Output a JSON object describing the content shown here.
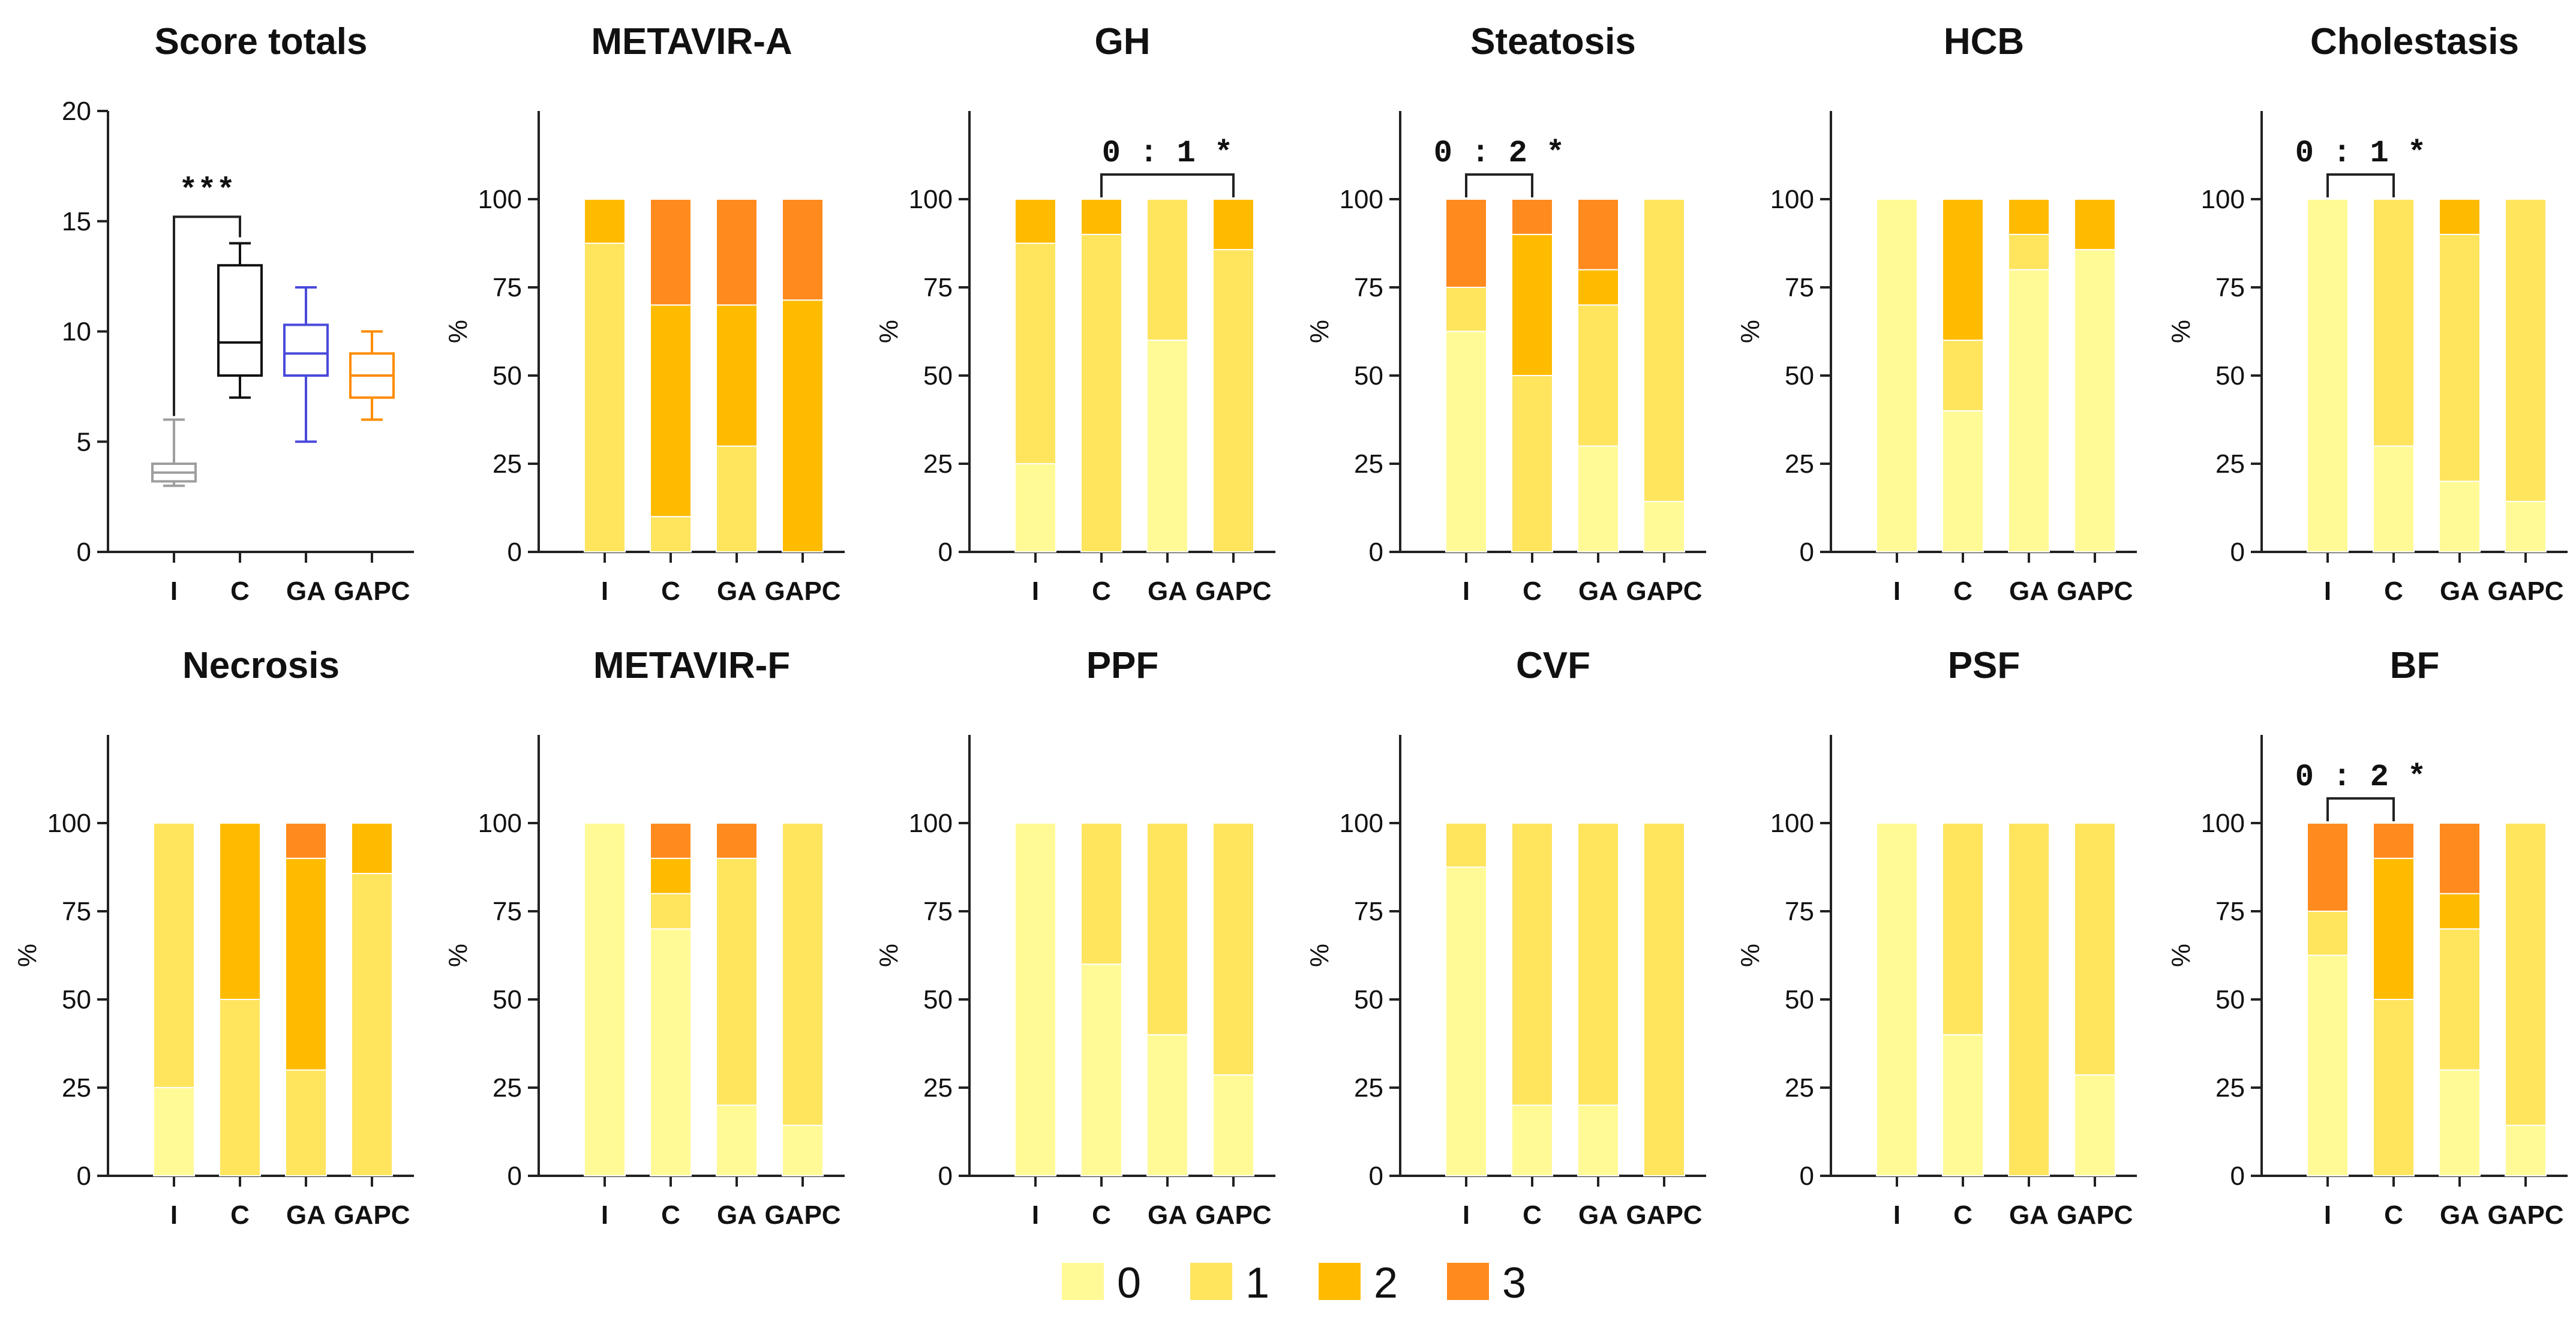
{
  "colors": {
    "0": "#FFFA96",
    "1": "#FFE45E",
    "2": "#FFBB00",
    "3": "#FF8A1E"
  },
  "legend": {
    "items": [
      {
        "key": "0",
        "label": "0"
      },
      {
        "key": "1",
        "label": "1"
      },
      {
        "key": "2",
        "label": "2"
      },
      {
        "key": "3",
        "label": "3"
      }
    ]
  },
  "chart_data": [
    {
      "type": "box",
      "title": "Score totals",
      "categories": [
        "I",
        "C",
        "GA",
        "GAPC"
      ],
      "ylim": [
        0,
        20
      ],
      "yticks": [
        0,
        5,
        10,
        15,
        20
      ],
      "boxes": [
        {
          "name": "I",
          "min": 3,
          "q1": 3.2,
          "median": 3.6,
          "q3": 4,
          "max": 6,
          "color": "#9E9E9E"
        },
        {
          "name": "C",
          "min": 7,
          "q1": 8,
          "median": 9.5,
          "q3": 13,
          "max": 14,
          "color": "#111111"
        },
        {
          "name": "GA",
          "min": 5,
          "q1": 8,
          "median": 9,
          "q3": 10.3,
          "max": 12,
          "color": "#4A4ADB"
        },
        {
          "name": "GAPC",
          "min": 6,
          "q1": 7,
          "median": 8,
          "q3": 9,
          "max": 10,
          "color": "#FF8C00"
        }
      ],
      "annotation": {
        "from": 0,
        "to": 1,
        "text": "***"
      }
    },
    {
      "type": "stacked-bar",
      "title": "METAVIR-A",
      "ylabel": "%",
      "ylim": [
        0,
        125
      ],
      "yticks": [
        0,
        25,
        50,
        75,
        100
      ],
      "categories": [
        "I",
        "C",
        "GA",
        "GAPC"
      ],
      "series": [
        {
          "name": "0",
          "values": [
            0,
            0,
            0,
            0
          ]
        },
        {
          "name": "1",
          "values": [
            87.5,
            10,
            30,
            0
          ]
        },
        {
          "name": "2",
          "values": [
            12.5,
            60,
            40,
            71.4
          ]
        },
        {
          "name": "3",
          "values": [
            0,
            30,
            30,
            28.6
          ]
        }
      ]
    },
    {
      "type": "stacked-bar",
      "title": "GH",
      "ylabel": "%",
      "ylim": [
        0,
        125
      ],
      "yticks": [
        0,
        25,
        50,
        75,
        100
      ],
      "categories": [
        "I",
        "C",
        "GA",
        "GAPC"
      ],
      "series": [
        {
          "name": "0",
          "values": [
            25,
            0,
            60,
            0
          ]
        },
        {
          "name": "1",
          "values": [
            62.5,
            90,
            40,
            85.7
          ]
        },
        {
          "name": "2",
          "values": [
            12.5,
            10,
            0,
            14.3
          ]
        },
        {
          "name": "3",
          "values": [
            0,
            0,
            0,
            0
          ]
        }
      ],
      "annotation": {
        "from": 1,
        "to": 3,
        "text": "0 : 1 *"
      }
    },
    {
      "type": "stacked-bar",
      "title": "Steatosis",
      "ylabel": "%",
      "ylim": [
        0,
        125
      ],
      "yticks": [
        0,
        25,
        50,
        75,
        100
      ],
      "categories": [
        "I",
        "C",
        "GA",
        "GAPC"
      ],
      "series": [
        {
          "name": "0",
          "values": [
            62.5,
            0,
            30,
            14.3
          ]
        },
        {
          "name": "1",
          "values": [
            12.5,
            50,
            40,
            85.7
          ]
        },
        {
          "name": "2",
          "values": [
            0,
            40,
            10,
            0
          ]
        },
        {
          "name": "3",
          "values": [
            25,
            10,
            20,
            0
          ]
        }
      ],
      "annotation": {
        "from": 0,
        "to": 1,
        "text": "0 : 2 *"
      }
    },
    {
      "type": "stacked-bar",
      "title": "HCB",
      "ylabel": "%",
      "ylim": [
        0,
        125
      ],
      "yticks": [
        0,
        25,
        50,
        75,
        100
      ],
      "categories": [
        "I",
        "C",
        "GA",
        "GAPC"
      ],
      "series": [
        {
          "name": "0",
          "values": [
            100,
            40,
            80,
            85.7
          ]
        },
        {
          "name": "1",
          "values": [
            0,
            20,
            10,
            0
          ]
        },
        {
          "name": "2",
          "values": [
            0,
            40,
            10,
            14.3
          ]
        },
        {
          "name": "3",
          "values": [
            0,
            0,
            0,
            0
          ]
        }
      ]
    },
    {
      "type": "stacked-bar",
      "title": "Cholestasis",
      "ylabel": "%",
      "ylim": [
        0,
        125
      ],
      "yticks": [
        0,
        25,
        50,
        75,
        100
      ],
      "categories": [
        "I",
        "C",
        "GA",
        "GAPC"
      ],
      "series": [
        {
          "name": "0",
          "values": [
            100,
            30,
            20,
            14.3
          ]
        },
        {
          "name": "1",
          "values": [
            0,
            70,
            70,
            85.7
          ]
        },
        {
          "name": "2",
          "values": [
            0,
            0,
            10,
            0
          ]
        },
        {
          "name": "3",
          "values": [
            0,
            0,
            0,
            0
          ]
        }
      ],
      "annotation": {
        "from": 0,
        "to": 1,
        "text": "0 : 1 *"
      }
    },
    {
      "type": "stacked-bar",
      "title": "Necrosis",
      "ylabel": "%",
      "ylim": [
        0,
        125
      ],
      "yticks": [
        0,
        25,
        50,
        75,
        100
      ],
      "categories": [
        "I",
        "C",
        "GA",
        "GAPC"
      ],
      "series": [
        {
          "name": "0",
          "values": [
            25,
            0,
            0,
            0
          ]
        },
        {
          "name": "1",
          "values": [
            75,
            50,
            30,
            85.7
          ]
        },
        {
          "name": "2",
          "values": [
            0,
            50,
            60,
            14.3
          ]
        },
        {
          "name": "3",
          "values": [
            0,
            0,
            10,
            0
          ]
        }
      ]
    },
    {
      "type": "stacked-bar",
      "title": "METAVIR-F",
      "ylabel": "%",
      "ylim": [
        0,
        125
      ],
      "yticks": [
        0,
        25,
        50,
        75,
        100
      ],
      "categories": [
        "I",
        "C",
        "GA",
        "GAPC"
      ],
      "series": [
        {
          "name": "0",
          "values": [
            100,
            70,
            20,
            14.3
          ]
        },
        {
          "name": "1",
          "values": [
            0,
            10,
            70,
            85.7
          ]
        },
        {
          "name": "2",
          "values": [
            0,
            10,
            0,
            0
          ]
        },
        {
          "name": "3",
          "values": [
            0,
            10,
            10,
            0
          ]
        }
      ]
    },
    {
      "type": "stacked-bar",
      "title": "PPF",
      "ylabel": "%",
      "ylim": [
        0,
        125
      ],
      "yticks": [
        0,
        25,
        50,
        75,
        100
      ],
      "categories": [
        "I",
        "C",
        "GA",
        "GAPC"
      ],
      "series": [
        {
          "name": "0",
          "values": [
            100,
            60,
            40,
            28.6
          ]
        },
        {
          "name": "1",
          "values": [
            0,
            40,
            60,
            71.4
          ]
        },
        {
          "name": "2",
          "values": [
            0,
            0,
            0,
            0
          ]
        },
        {
          "name": "3",
          "values": [
            0,
            0,
            0,
            0
          ]
        }
      ]
    },
    {
      "type": "stacked-bar",
      "title": "CVF",
      "ylabel": "%",
      "ylim": [
        0,
        125
      ],
      "yticks": [
        0,
        25,
        50,
        75,
        100
      ],
      "categories": [
        "I",
        "C",
        "GA",
        "GAPC"
      ],
      "series": [
        {
          "name": "0",
          "values": [
            87.5,
            20,
            20,
            0
          ]
        },
        {
          "name": "1",
          "values": [
            12.5,
            80,
            80,
            100
          ]
        },
        {
          "name": "2",
          "values": [
            0,
            0,
            0,
            0
          ]
        },
        {
          "name": "3",
          "values": [
            0,
            0,
            0,
            0
          ]
        }
      ]
    },
    {
      "type": "stacked-bar",
      "title": "PSF",
      "ylabel": "%",
      "ylim": [
        0,
        125
      ],
      "yticks": [
        0,
        25,
        50,
        75,
        100
      ],
      "categories": [
        "I",
        "C",
        "GA",
        "GAPC"
      ],
      "series": [
        {
          "name": "0",
          "values": [
            100,
            40,
            0,
            28.6
          ]
        },
        {
          "name": "1",
          "values": [
            0,
            60,
            100,
            71.4
          ]
        },
        {
          "name": "2",
          "values": [
            0,
            0,
            0,
            0
          ]
        },
        {
          "name": "3",
          "values": [
            0,
            0,
            0,
            0
          ]
        }
      ]
    },
    {
      "type": "stacked-bar",
      "title": "BF",
      "ylabel": "%",
      "ylim": [
        0,
        125
      ],
      "yticks": [
        0,
        25,
        50,
        75,
        100
      ],
      "categories": [
        "I",
        "C",
        "GA",
        "GAPC"
      ],
      "series": [
        {
          "name": "0",
          "values": [
            62.5,
            0,
            30,
            14.3
          ]
        },
        {
          "name": "1",
          "values": [
            12.5,
            50,
            40,
            85.7
          ]
        },
        {
          "name": "2",
          "values": [
            0,
            40,
            10,
            0
          ]
        },
        {
          "name": "3",
          "values": [
            25,
            10,
            20,
            0
          ]
        }
      ],
      "annotation": {
        "from": 0,
        "to": 1,
        "text": "0 : 2 *"
      }
    }
  ]
}
